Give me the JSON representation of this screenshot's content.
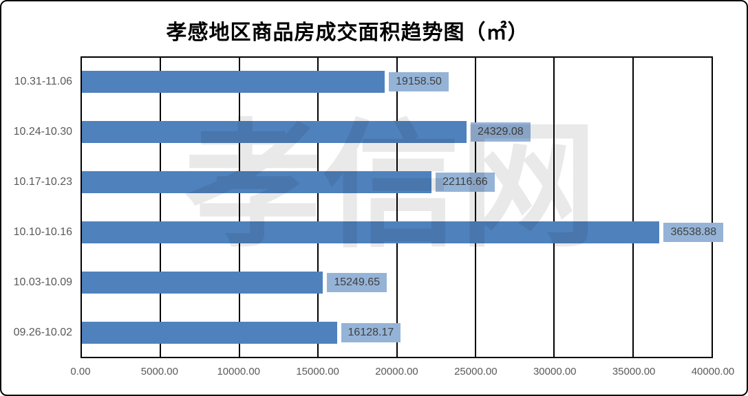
{
  "title": "孝感地区商品房成交面积趋势图（㎡）",
  "watermark": "孝信网",
  "colors": {
    "bar": "#4F81BD",
    "value_label_bg": "#95B3D7",
    "value_label_text": "#3F3F3F",
    "axis_text": "#595959",
    "gridline": "#000000",
    "border": "#000000",
    "watermark": "#e9e9e9"
  },
  "chart_data": {
    "type": "bar",
    "orientation": "horizontal",
    "title": "孝感地区商品房成交面积趋势图（㎡）",
    "categories": [
      "10.31-11.06",
      "10.24-10.30",
      "10.17-10.23",
      "10.10-10.16",
      "10.03-10.09",
      "09.26-10.02"
    ],
    "values": [
      19158.5,
      24329.08,
      22116.66,
      36538.88,
      15249.65,
      16128.17
    ],
    "data_labels": [
      "19158.50",
      "24329.08",
      "22116.66",
      "36538.88",
      "15249.65",
      "16128.17"
    ],
    "x_ticks": [
      "0.00",
      "5000.00",
      "10000.00",
      "15000.00",
      "20000.00",
      "25000.00",
      "30000.00",
      "35000.00",
      "40000.00"
    ],
    "xlim": [
      0,
      40000
    ],
    "grid": "vertical-only",
    "legend": "none",
    "xlabel": "",
    "ylabel": ""
  }
}
